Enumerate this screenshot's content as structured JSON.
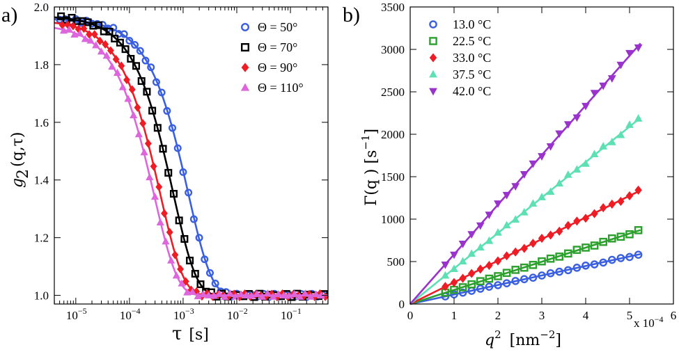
{
  "chart_data": [
    {
      "panel_label": "a)",
      "type": "scatter",
      "xscale": "log",
      "xlabel_symbol": "τ",
      "xlabel_unit": "[s]",
      "ylabel_main": "g",
      "ylabel_sub": "2",
      "ylabel_rest": "(q,τ)",
      "xlim_exp": [
        -5.4,
        -0.3
      ],
      "ylim": [
        0.97,
        2.0
      ],
      "x_tick_exps": [
        -5,
        -4,
        -3,
        -2,
        -1
      ],
      "x_tick_labels": [
        "10",
        "10",
        "10",
        "10",
        "10"
      ],
      "x_tick_sups": [
        "−5",
        "−4",
        "−3",
        "−2",
        "−1"
      ],
      "y_ticks": [
        1.0,
        1.2,
        1.4,
        1.6,
        1.8,
        2.0
      ],
      "y_tick_labels": [
        "1.0",
        "1.2",
        "1.4",
        "1.6",
        "1.8",
        "2.0"
      ],
      "legend_position": "top-right",
      "series": [
        {
          "name": "Θ = 50°",
          "color": "#3a5fe0",
          "marker": "circle",
          "baseline": 1.0,
          "amplitude": 0.96,
          "tau_c": 0.0025
        },
        {
          "name": "Θ = 70°",
          "color": "#000000",
          "marker": "square",
          "baseline": 1.0,
          "amplitude": 0.97,
          "tau_c": 0.0013
        },
        {
          "name": "Θ = 90°",
          "color": "#ee1c24",
          "marker": "diamond",
          "baseline": 1.0,
          "amplitude": 0.955,
          "tau_c": 0.00075
        },
        {
          "name": "Θ = 110°",
          "color": "#dd66dd",
          "marker": "triangle-up",
          "baseline": 1.0,
          "amplitude": 0.94,
          "tau_c": 0.00058
        }
      ]
    },
    {
      "panel_label": "b)",
      "type": "scatter",
      "xlabel_main": "q",
      "xlabel_sup": "2",
      "xlabel_unit": "[nm",
      "xlabel_unit_sup": "−2",
      "xlabel_unit_end": "]",
      "ylabel": "Γ(q ) [s",
      "ylabel_sup": "−1",
      "ylabel_end": "]",
      "x_multiplier": "x 10",
      "x_multiplier_sup": "−4",
      "xlim": [
        0,
        6
      ],
      "ylim": [
        0,
        3500
      ],
      "x_ticks": [
        0,
        1,
        2,
        3,
        4,
        5,
        6
      ],
      "x_tick_labels": [
        "0",
        "1",
        "2",
        "3",
        "4",
        "5",
        "6"
      ],
      "y_ticks": [
        0,
        500,
        1000,
        1500,
        2000,
        2500,
        3000,
        3500
      ],
      "y_tick_labels": [
        "0",
        "500",
        "1000",
        "1500",
        "2000",
        "2500",
        "3000",
        "3500"
      ],
      "legend_position": "top-left",
      "x_points": [
        0.8,
        1.0,
        1.2,
        1.4,
        1.6,
        1.8,
        2.0,
        2.2,
        2.4,
        2.6,
        2.8,
        3.0,
        3.2,
        3.4,
        3.6,
        3.8,
        4.0,
        4.2,
        4.4,
        4.6,
        4.8,
        5.0,
        5.2
      ],
      "series": [
        {
          "name": "13.0 °C",
          "color": "#3a5fe0",
          "marker": "circle",
          "slope": 112,
          "fit_end": 5.25
        },
        {
          "name": "22.5 °C",
          "color": "#2ca02c",
          "marker": "square",
          "slope": 166,
          "fit_end": 5.25
        },
        {
          "name": "33.0 °C",
          "color": "#ee1c24",
          "marker": "diamond",
          "slope": 255,
          "fit_end": 5.25
        },
        {
          "name": "37.5 °C",
          "color": "#5ee0b4",
          "marker": "triangle-up",
          "slope": 418,
          "fit_end": 5.25
        },
        {
          "name": "42.0 °C",
          "color": "#9933cc",
          "marker": "triangle-down",
          "slope": 585,
          "fit_end": 5.25
        }
      ]
    }
  ]
}
